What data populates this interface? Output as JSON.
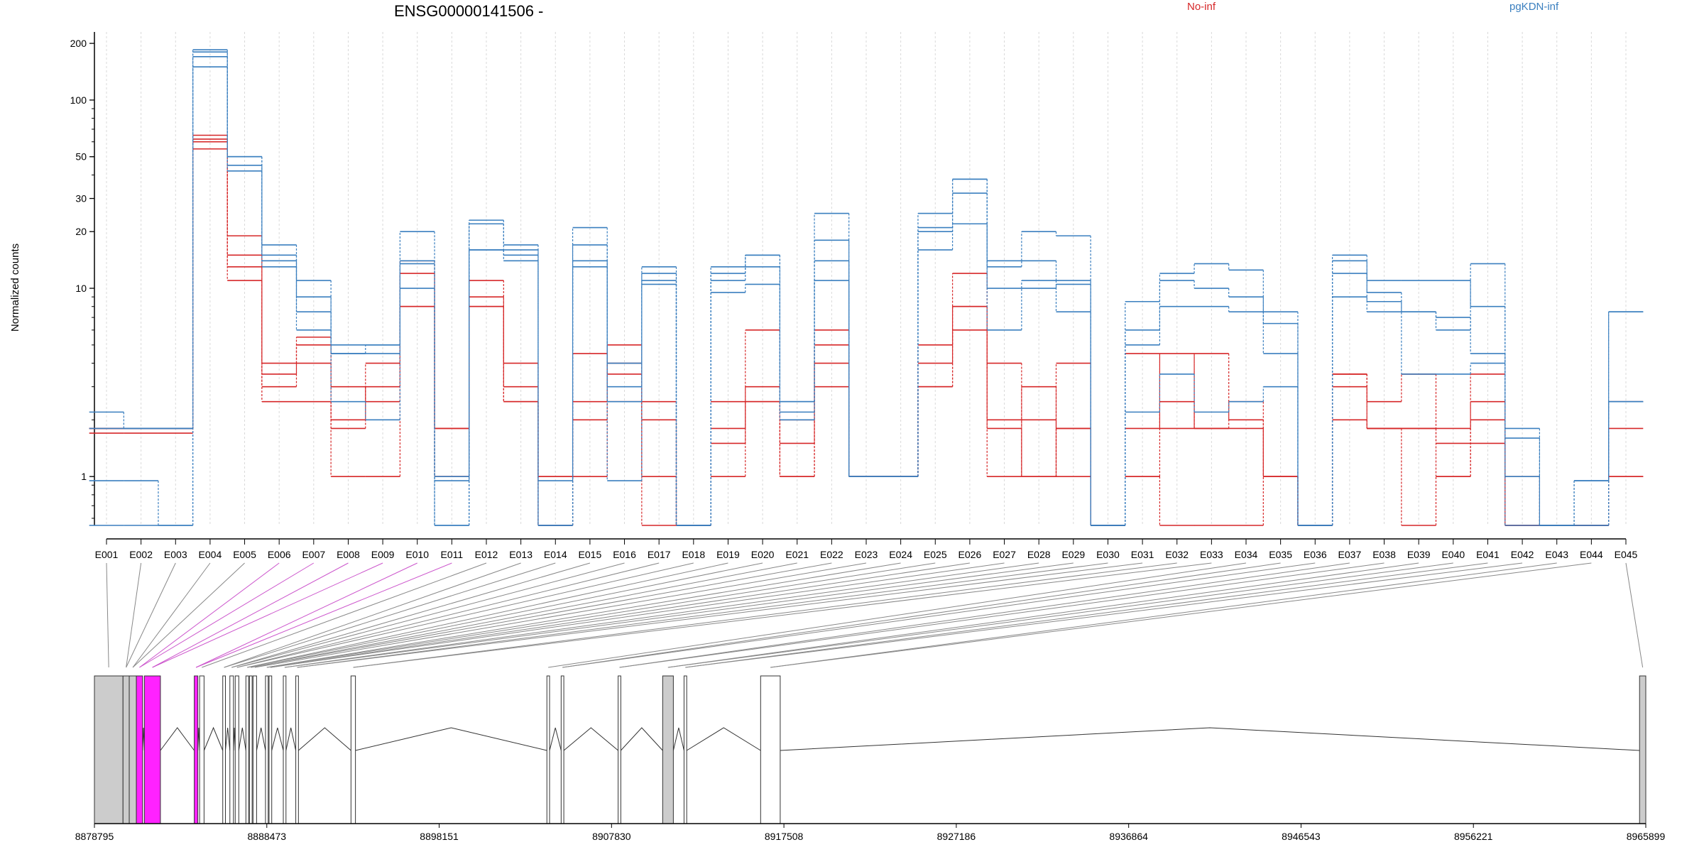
{
  "chart_data": {
    "type": "line",
    "title": "ENSG00000141506 -",
    "xlabel": "",
    "ylabel": "Normalized counts",
    "y_scale": "log",
    "ylim": [
      0.55,
      230
    ],
    "yticks": [
      1,
      10,
      20,
      30,
      50,
      100,
      200
    ],
    "grid": "vertical dotted lines at each exon bin",
    "legend_position": "top",
    "colors": {
      "No-inf": "#d62728",
      "pgKDN-inf": "#3a7fbf"
    },
    "categories": [
      "E001",
      "E002",
      "E003",
      "E004",
      "E005",
      "E006",
      "E007",
      "E008",
      "E009",
      "E010",
      "E011",
      "E012",
      "E013",
      "E014",
      "E015",
      "E016",
      "E017",
      "E018",
      "E019",
      "E020",
      "E021",
      "E022",
      "E023",
      "E024",
      "E025",
      "E026",
      "E027",
      "E028",
      "E029",
      "E030",
      "E031",
      "E032",
      "E033",
      "E034",
      "E035",
      "E036",
      "E037",
      "E038",
      "E039",
      "E040",
      "E041",
      "E042",
      "E043",
      "E044",
      "E045"
    ],
    "series": [
      {
        "name": "No-inf",
        "values": [
          1.8,
          1.8,
          1.8,
          65,
          13,
          3.5,
          5,
          1.8,
          3,
          12,
          1.8,
          11,
          3,
          1,
          4.5,
          3.5,
          2,
          0.55,
          1.8,
          3,
          2,
          5,
          1,
          1,
          4,
          12,
          4,
          2,
          1.8,
          0.55,
          4.5,
          1.8,
          4.5,
          2,
          1,
          0.55,
          3.5,
          2.5,
          3.5,
          1.8,
          3.5,
          1,
          0.55,
          0.55,
          2.5
        ]
      },
      {
        "name": "No-inf",
        "values": [
          1.7,
          1.7,
          1.7,
          60,
          15,
          3,
          4,
          3,
          2.5,
          8,
          1,
          9,
          4,
          1,
          2.5,
          4,
          1,
          0.55,
          1.5,
          2.5,
          1.5,
          4,
          1,
          1,
          3,
          8,
          2,
          1,
          4,
          0.55,
          1,
          2.5,
          1.8,
          2.5,
          1,
          0.55,
          3.5,
          1.8,
          1.8,
          1.5,
          1.5,
          0.55,
          0.55,
          0.55,
          1
        ]
      },
      {
        "name": "No-inf",
        "values": [
          1.8,
          1.8,
          1.8,
          62,
          19,
          4,
          5.5,
          2,
          4,
          14,
          1,
          8,
          2.5,
          0.55,
          2,
          5,
          2.5,
          0.55,
          2.5,
          6,
          1,
          6,
          1,
          1,
          5,
          6,
          1,
          3,
          1,
          0.55,
          1.8,
          4.5,
          1.8,
          1.8,
          1,
          0.55,
          3,
          1.8,
          1.8,
          1,
          2,
          0.55,
          0.55,
          0.55,
          1.8
        ]
      },
      {
        "name": "No-inf",
        "values": [
          1.8,
          1.8,
          1.8,
          55,
          11,
          2.5,
          2.5,
          1,
          1,
          8,
          1.8,
          8,
          2.5,
          0.55,
          1,
          2.5,
          0.55,
          0.55,
          1,
          2.5,
          1,
          3,
          1,
          1,
          3,
          8,
          1.8,
          1,
          1.8,
          0.55,
          1,
          0.55,
          0.55,
          0.55,
          1,
          0.55,
          2,
          1.8,
          0.55,
          1,
          2.5,
          0.55,
          0.55,
          0.55,
          1
        ]
      },
      {
        "name": "pgKDN-inf",
        "values": [
          2.2,
          1.8,
          1.8,
          185,
          50,
          17,
          11,
          5,
          5,
          20,
          1,
          23,
          17,
          0.55,
          21,
          3,
          13,
          0.55,
          13,
          15,
          2.5,
          25,
          1,
          1,
          25,
          38,
          14,
          20,
          19,
          0.55,
          8.5,
          12,
          13.5,
          12.5,
          7.5,
          0.55,
          15,
          11,
          11,
          11,
          8,
          1.6,
          0.55,
          0.55,
          7.5
        ]
      },
      {
        "name": "pgKDN-inf",
        "values": [
          0.95,
          0.95,
          0.55,
          170,
          45,
          15,
          9,
          4.5,
          5,
          13.5,
          0.95,
          22,
          16,
          0.95,
          17,
          4,
          11,
          0.55,
          11,
          15,
          2.5,
          18,
          1,
          1,
          21,
          38,
          13,
          14,
          11,
          0.55,
          6,
          11,
          10,
          9,
          6.5,
          0.55,
          14,
          9.5,
          7.5,
          6,
          13.5,
          1.8,
          0.55,
          0.95,
          7.5
        ]
      },
      {
        "name": "pgKDN-inf",
        "values": [
          1.8,
          1.8,
          1.8,
          180,
          50,
          14,
          7.5,
          4.5,
          4.5,
          14,
          0.55,
          16,
          15,
          0.55,
          13,
          2.5,
          10.5,
          0.55,
          9.5,
          10.5,
          2,
          11,
          1,
          1,
          20,
          32,
          10,
          11,
          7.5,
          0.55,
          5,
          8,
          8,
          7.5,
          4.5,
          0.55,
          9,
          7.5,
          7.5,
          7,
          4.5,
          1,
          0.55,
          0.95,
          2.5
        ]
      },
      {
        "name": "pgKDN-inf",
        "values": [
          0.55,
          0.55,
          0.55,
          150,
          42,
          13,
          6,
          2.5,
          2,
          10,
          0.55,
          16,
          14,
          0.55,
          14,
          0.95,
          12,
          0.55,
          12,
          13,
          2.2,
          14,
          1,
          1,
          16,
          22,
          6,
          10,
          10.5,
          0.55,
          2.2,
          3.5,
          2.2,
          2.5,
          3,
          0.55,
          12,
          8.5,
          3.5,
          3.5,
          4,
          0.55,
          0.55,
          0.55,
          2.5
        ]
      }
    ],
    "legend": [
      "No-inf",
      "pgKDN-inf"
    ],
    "gene_model": {
      "coordinate_ticks": [
        "8878795",
        "8888473",
        "8898151",
        "8907830",
        "8917508",
        "8927186",
        "8936864",
        "8946543",
        "8956221",
        "8965899"
      ],
      "range": [
        8878795,
        8965899
      ],
      "highlight_color": "#ff22ff",
      "exon_color": "#cccccc",
      "exons": [
        [
          8878795,
          8880400,
          "grey"
        ],
        [
          8880400,
          8880750,
          "grey"
        ],
        [
          8880750,
          8881150,
          "grey"
        ],
        [
          8881150,
          8881500,
          "pink"
        ],
        [
          8881600,
          8882500,
          "pink"
        ],
        [
          8884400,
          8884600,
          "pink"
        ],
        [
          8884700,
          8884950,
          "white"
        ],
        [
          8886000,
          8886150,
          "white"
        ],
        [
          8886400,
          8886600,
          "white"
        ],
        [
          8886700,
          8886900,
          "white"
        ],
        [
          8887300,
          8887450,
          "white"
        ],
        [
          8887500,
          8887650,
          "white"
        ],
        [
          8887700,
          8887900,
          "white"
        ],
        [
          8888400,
          8888550,
          "white"
        ],
        [
          8888600,
          8888750,
          "white"
        ],
        [
          8889400,
          8889550,
          "white"
        ],
        [
          8890100,
          8890250,
          "white"
        ],
        [
          8893200,
          8893450,
          "white"
        ],
        [
          8904200,
          8904350,
          "white"
        ],
        [
          8905000,
          8905150,
          "white"
        ],
        [
          8908200,
          8908350,
          "white"
        ],
        [
          8910700,
          8911300,
          "grey"
        ],
        [
          8911900,
          8912050,
          "white"
        ],
        [
          8916200,
          8917300,
          "white"
        ],
        [
          8965550,
          8965899,
          "grey"
        ]
      ]
    }
  }
}
